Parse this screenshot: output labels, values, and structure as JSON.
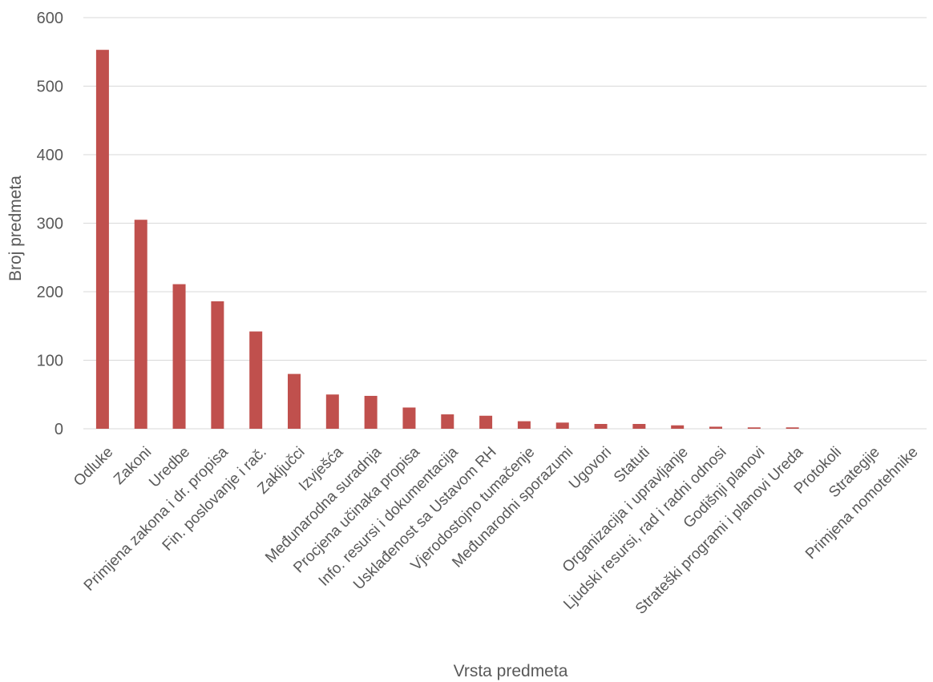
{
  "chart_data": {
    "type": "bar",
    "title": "",
    "xlabel": "Vrsta predmeta",
    "ylabel": "Broj predmeta",
    "ylim": [
      0,
      600
    ],
    "yticks": [
      0,
      100,
      200,
      300,
      400,
      500,
      600
    ],
    "grid": true,
    "legend": "none",
    "bar_color": "#c0504d",
    "categories": [
      "Odluke",
      "Zakoni",
      "Uredbe",
      "Primjena zakona i dr. propisa",
      "Fin. poslovanje i rač.",
      "Zaključci",
      "Izvješća",
      "Međunarodna suradnja",
      "Procjena učinaka propisa",
      "Info. resursi i dokumentacija",
      "Usklađenost sa Ustavom RH",
      "Vjerodostojno tumačenje",
      "Međunarodni sporazumi",
      "Ugovori",
      "Statuti",
      "Organizacija i upravljanje",
      "Ljudski resursi, rad i radni odnosi",
      "Godišnji planovi",
      "Strateški programi i planovi Ureda",
      "Protokoli",
      "Strategije",
      "Primjena nomotehnike"
    ],
    "values": [
      553,
      305,
      211,
      186,
      142,
      80,
      50,
      48,
      31,
      21,
      19,
      11,
      9,
      7,
      7,
      5,
      3,
      2,
      2,
      0,
      0,
      0
    ]
  }
}
